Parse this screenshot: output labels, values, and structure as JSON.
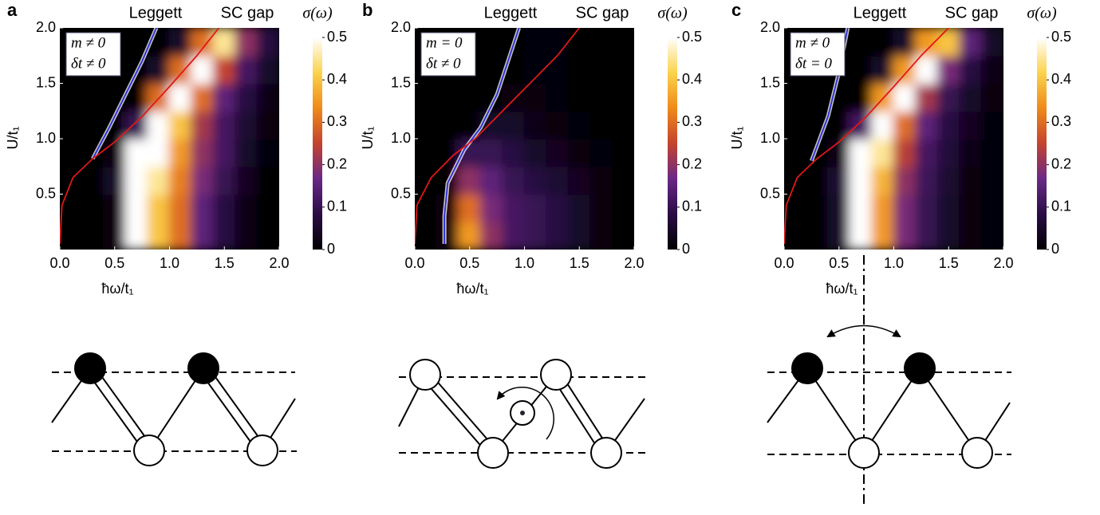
{
  "chart_data": [
    {
      "type": "heatmap",
      "panel_label": "a",
      "x_label": "ħω/t₁",
      "y_label": "U/t₁",
      "colorbar_label": "σ(ω)",
      "annotations": [
        "m ≠ 0",
        "δt ≠ 0"
      ],
      "x": [
        0.1,
        0.3,
        0.5,
        0.7,
        0.9,
        1.1,
        1.3,
        1.5,
        1.7,
        1.9
      ],
      "y": [
        0.125,
        0.375,
        0.625,
        0.875,
        1.125,
        1.375,
        1.625,
        1.875
      ],
      "z": [
        [
          0,
          0,
          0.02,
          0.5,
          0.4,
          0.3,
          0.15,
          0.08,
          0.03,
          0
        ],
        [
          0,
          0,
          0.02,
          0.5,
          0.4,
          0.3,
          0.15,
          0.08,
          0.03,
          0
        ],
        [
          0,
          0,
          0.05,
          0.5,
          0.45,
          0.32,
          0.18,
          0.1,
          0.04,
          0
        ],
        [
          0,
          0,
          0.02,
          0.5,
          0.5,
          0.35,
          0.2,
          0.12,
          0.05,
          0.01
        ],
        [
          0,
          0,
          0,
          0.1,
          0.5,
          0.4,
          0.22,
          0.12,
          0.06,
          0.02
        ],
        [
          0,
          0,
          0,
          0,
          0.3,
          0.5,
          0.3,
          0.15,
          0.08,
          0.03
        ],
        [
          0,
          0,
          0,
          0,
          0.05,
          0.3,
          0.5,
          0.25,
          0.12,
          0.05
        ],
        [
          0,
          0,
          0,
          0,
          0,
          0.05,
          0.3,
          0.45,
          0.2,
          0.08
        ]
      ],
      "colorscale": [
        "#000000",
        "#2a0c45",
        "#6a2886",
        "#c4432f",
        "#ef8a19",
        "#fbd34c",
        "#ffffff"
      ],
      "zlim": [
        0,
        0.5
      ],
      "zticks": [
        0,
        0.1,
        0.2,
        0.3,
        0.4,
        0.5
      ],
      "xlim": [
        0,
        2
      ],
      "xticks": [
        {
          "value": 0,
          "label": "0.0"
        },
        0.5,
        {
          "value": 1,
          "label": "1.0"
        },
        1.5,
        {
          "value": 2,
          "label": "2.0"
        }
      ],
      "ylim": [
        0,
        2
      ],
      "yticks": [
        0.5,
        {
          "value": 1,
          "label": "1.0"
        },
        1.5,
        {
          "value": 2,
          "label": "2.0"
        }
      ],
      "series": [
        {
          "name": "Leggett",
          "color": "#2b2bd9",
          "x": [
            0.3,
            0.45,
            0.6,
            0.75,
            0.88
          ],
          "values": [
            0.82,
            1.1,
            1.4,
            1.7,
            2.0
          ]
        },
        {
          "name": "SC gap",
          "color": "#e01818",
          "x": [
            0,
            0.02,
            0.12,
            0.3,
            0.5,
            0.75,
            1.0,
            1.25,
            1.45
          ],
          "values": [
            0.05,
            0.4,
            0.65,
            0.82,
            0.97,
            1.2,
            1.47,
            1.75,
            2.0
          ]
        }
      ]
    },
    {
      "type": "heatmap",
      "panel_label": "b",
      "x_label": "ħω/t₁",
      "y_label": "U/t₁",
      "colorbar_label": "σ(ω)",
      "annotations": [
        "m = 0",
        "δt ≠ 0"
      ],
      "x": [
        0.1,
        0.3,
        0.5,
        0.7,
        0.9,
        1.1,
        1.3,
        1.5,
        1.7,
        1.9
      ],
      "y": [
        0.125,
        0.375,
        0.625,
        0.875,
        1.125,
        1.375,
        1.625,
        1.875
      ],
      "z": [
        [
          0,
          0.02,
          0.35,
          0.2,
          0.12,
          0.1,
          0.08,
          0.05,
          0.02,
          0
        ],
        [
          0,
          0.02,
          0.3,
          0.18,
          0.12,
          0.1,
          0.08,
          0.05,
          0.02,
          0
        ],
        [
          0,
          0,
          0.2,
          0.15,
          0.1,
          0.08,
          0.06,
          0.04,
          0.02,
          0
        ],
        [
          0,
          0,
          0.1,
          0.1,
          0.08,
          0.05,
          0.04,
          0.02,
          0.01,
          0
        ],
        [
          0,
          0,
          0,
          0.05,
          0.05,
          0.03,
          0.02,
          0.01,
          0,
          0
        ],
        [
          0,
          0,
          0,
          0,
          0.02,
          0.02,
          0.01,
          0,
          0,
          0
        ],
        [
          0,
          0,
          0,
          0,
          0,
          0.01,
          0.01,
          0,
          0,
          0
        ],
        [
          0,
          0,
          0,
          0,
          0,
          0.01,
          0.01,
          0,
          0,
          0
        ]
      ],
      "colorscale": [
        "#000000",
        "#2a0c45",
        "#6a2886",
        "#c4432f",
        "#ef8a19",
        "#fbd34c",
        "#ffffff"
      ],
      "zlim": [
        0,
        0.5
      ],
      "zticks": [
        0,
        0.1,
        0.2,
        0.3,
        0.4,
        0.5
      ],
      "xlim": [
        0,
        2
      ],
      "xticks": [
        {
          "value": 0,
          "label": "0.0"
        },
        0.5,
        {
          "value": 1,
          "label": "1.0"
        },
        1.5,
        {
          "value": 2,
          "label": "2.0"
        }
      ],
      "ylim": [
        0,
        2
      ],
      "yticks": [
        0.5,
        {
          "value": 1,
          "label": "1.0"
        },
        1.5,
        {
          "value": 2,
          "label": "2.0"
        }
      ],
      "series": [
        {
          "name": "Leggett",
          "color": "#2b2bd9",
          "x": [
            0.27,
            0.27,
            0.3,
            0.45,
            0.6,
            0.75,
            0.85,
            0.95
          ],
          "values": [
            0.05,
            0.3,
            0.6,
            0.9,
            1.1,
            1.4,
            1.7,
            2.0
          ]
        },
        {
          "name": "SC gap",
          "color": "#e01818",
          "x": [
            0,
            0.02,
            0.15,
            0.35,
            0.55,
            0.8,
            1.05,
            1.3,
            1.5
          ],
          "values": [
            0.05,
            0.4,
            0.65,
            0.85,
            1.0,
            1.25,
            1.5,
            1.75,
            2.0
          ]
        }
      ]
    },
    {
      "type": "heatmap",
      "panel_label": "c",
      "x_label": "ħω/t₁",
      "y_label": "U/t₁",
      "colorbar_label": "σ(ω)",
      "annotations": [
        "m ≠ 0",
        "δt = 0"
      ],
      "x": [
        0.1,
        0.3,
        0.5,
        0.7,
        0.9,
        1.1,
        1.3,
        1.5,
        1.7,
        1.9
      ],
      "y": [
        0.125,
        0.375,
        0.625,
        0.875,
        1.125,
        1.375,
        1.625,
        1.875
      ],
      "z": [
        [
          0,
          0,
          0.05,
          0.5,
          0.35,
          0.18,
          0.1,
          0.05,
          0.02,
          0.01
        ],
        [
          0,
          0,
          0.05,
          0.5,
          0.35,
          0.18,
          0.1,
          0.05,
          0.02,
          0.01
        ],
        [
          0,
          0,
          0.06,
          0.5,
          0.38,
          0.2,
          0.11,
          0.06,
          0.02,
          0.01
        ],
        [
          0,
          0,
          0.03,
          0.5,
          0.45,
          0.24,
          0.12,
          0.07,
          0.03,
          0.01
        ],
        [
          0,
          0,
          0,
          0.12,
          0.5,
          0.3,
          0.15,
          0.08,
          0.04,
          0.01
        ],
        [
          0,
          0,
          0,
          0,
          0.35,
          0.5,
          0.22,
          0.1,
          0.05,
          0.02
        ],
        [
          0,
          0,
          0,
          0,
          0.05,
          0.35,
          0.5,
          0.18,
          0.08,
          0.03
        ],
        [
          0,
          0,
          0,
          0,
          0,
          0.05,
          0.35,
          0.4,
          0.15,
          0.05
        ]
      ],
      "colorscale": [
        "#000000",
        "#2a0c45",
        "#6a2886",
        "#c4432f",
        "#ef8a19",
        "#fbd34c",
        "#ffffff"
      ],
      "zlim": [
        0,
        0.5
      ],
      "zticks": [
        0,
        0.1,
        0.2,
        0.3,
        0.4,
        0.5
      ],
      "xlim": [
        0,
        2
      ],
      "xticks": [
        {
          "value": 0,
          "label": "0.0"
        },
        0.5,
        {
          "value": 1,
          "label": "1.0"
        },
        1.5,
        {
          "value": 2,
          "label": "2.0"
        }
      ],
      "ylim": [
        0,
        2
      ],
      "yticks": [
        0.5,
        {
          "value": 1,
          "label": "1.0"
        },
        1.5,
        {
          "value": 2,
          "label": "2.0"
        }
      ],
      "series": [
        {
          "name": "Leggett",
          "color": "#2b2bd9",
          "x": [
            0.25,
            0.4,
            0.5,
            0.58
          ],
          "values": [
            0.8,
            1.2,
            1.6,
            2.0
          ]
        },
        {
          "name": "SC gap",
          "color": "#e01818",
          "x": [
            0,
            0.02,
            0.12,
            0.3,
            0.5,
            0.75,
            1.0,
            1.25,
            1.5
          ],
          "values": [
            0.05,
            0.4,
            0.65,
            0.82,
            0.97,
            1.2,
            1.47,
            1.75,
            2.0
          ]
        }
      ]
    }
  ]
}
